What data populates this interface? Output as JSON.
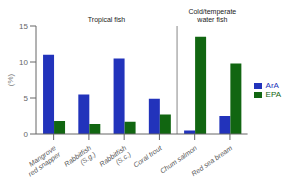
{
  "chart_data": {
    "type": "bar",
    "categories": [
      "Mangrove\nred snapper",
      "Rabbitfish\n(S.g.)",
      "Rabbitfish\n(S.c.)",
      "Coral trout",
      "Chum salmon",
      "Red sea bream"
    ],
    "series": [
      {
        "name": "ArA",
        "color": "#2233bb",
        "values": [
          11.0,
          5.5,
          10.5,
          4.9,
          0.5,
          2.5
        ]
      },
      {
        "name": "EPA",
        "color": "#116611",
        "values": [
          1.8,
          1.4,
          1.7,
          2.7,
          13.5,
          9.8
        ]
      }
    ],
    "ylim": [
      0,
      15
    ],
    "yticks": [
      0,
      5,
      10,
      15
    ],
    "ylabel": "(%)",
    "annotations": [
      "Tropical fish",
      "Cold/temperate\nwater fish"
    ],
    "grid": false,
    "legend": "right"
  }
}
